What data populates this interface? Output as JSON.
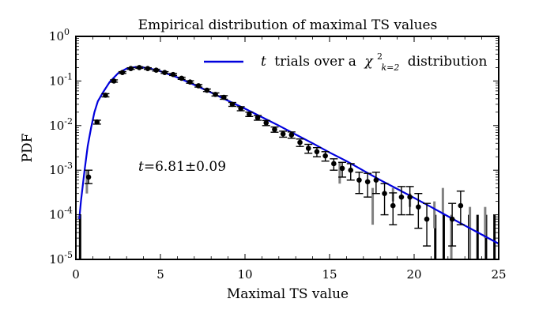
{
  "chart_data": {
    "type": "scatter",
    "title": "Empirical distribution of maximal TS values",
    "xlabel": "Maximal TS value",
    "ylabel": "PDF",
    "xlim": [
      0,
      25
    ],
    "ylim_log10": [
      -5,
      0
    ],
    "x_ticks": [
      0,
      5,
      10,
      15,
      20,
      25
    ],
    "x_tick_labels": [
      "0",
      "5",
      "10",
      "15",
      "20",
      "25"
    ],
    "y_ticks_log10": [
      0,
      -1,
      -2,
      -3,
      -4,
      -5
    ],
    "y_tick_labels": [
      "10^0",
      "10^-1",
      "10^-2",
      "10^-3",
      "10^-4",
      "10^-5"
    ],
    "legend": {
      "placement": "top-right",
      "label_prefix": "t",
      "label_text": "trials over a",
      "chi": "χ",
      "chi_sup": "2",
      "chi_sub": "k=2",
      "label_suffix": "distribution"
    },
    "annotation": {
      "symbol": "t",
      "text": "=6.81±0.09"
    },
    "colors": {
      "model": "#0000dd",
      "points": "#000000",
      "gray_bars": "#808080"
    },
    "model_curve": {
      "name": "t trials over a chi2_k=2 distribution",
      "x": [
        0.2,
        0.3,
        0.5,
        0.7,
        0.9,
        1.1,
        1.3,
        1.6,
        2.0,
        2.5,
        3.0,
        3.5,
        4.0,
        4.5,
        5.0,
        6.0,
        7.0,
        8.0,
        9.0,
        10.0,
        11.0,
        12.0,
        13.0,
        14.0,
        15.0,
        16.0,
        17.0,
        18.0,
        19.0,
        20.0,
        21.0,
        22.0,
        23.0,
        24.0,
        25.0
      ],
      "y": [
        8e-05,
        0.0002,
        0.0009,
        0.0035,
        0.009,
        0.02,
        0.035,
        0.055,
        0.095,
        0.15,
        0.19,
        0.205,
        0.2,
        0.185,
        0.165,
        0.12,
        0.082,
        0.055,
        0.036,
        0.024,
        0.0155,
        0.01,
        0.0063,
        0.004,
        0.0025,
        0.0016,
        0.00098,
        0.0006,
        0.00038,
        0.00024,
        0.00015,
        9.25e-05,
        5.75e-05,
        3.6e-05,
        2.25e-05
      ]
    },
    "black_points": {
      "name": "empirical",
      "x": [
        0.75,
        1.25,
        1.75,
        2.25,
        2.75,
        3.25,
        3.75,
        4.25,
        4.75,
        5.25,
        5.75,
        6.25,
        6.75,
        7.25,
        7.75,
        8.25,
        8.75,
        9.25,
        9.75,
        10.25,
        10.75,
        11.25,
        11.75,
        12.25,
        12.75,
        13.25,
        13.75,
        14.25,
        14.75,
        15.25,
        15.75,
        16.25,
        16.75,
        17.25,
        17.75,
        18.25,
        18.75,
        19.25,
        19.75,
        20.25,
        20.75,
        22.25,
        22.75
      ],
      "y": [
        0.0007,
        0.012,
        0.048,
        0.1,
        0.155,
        0.19,
        0.2,
        0.19,
        0.175,
        0.155,
        0.14,
        0.115,
        0.095,
        0.078,
        0.062,
        0.05,
        0.043,
        0.03,
        0.024,
        0.018,
        0.015,
        0.0115,
        0.0082,
        0.0065,
        0.0062,
        0.0042,
        0.0031,
        0.0026,
        0.0021,
        0.0014,
        0.0011,
        0.001,
        0.0006,
        0.00055,
        0.0006,
        0.0003,
        0.00016,
        0.00025,
        0.00025,
        0.00015,
        8e-05,
        8e-05,
        0.00016
      ],
      "err_low": [
        0.0002,
        0.0012,
        0.004,
        0.006,
        0.007,
        0.008,
        0.008,
        0.008,
        0.008,
        0.007,
        0.007,
        0.006,
        0.006,
        0.005,
        0.004,
        0.004,
        0.004,
        0.003,
        0.0025,
        0.002,
        0.0018,
        0.0015,
        0.0011,
        0.001,
        0.001,
        0.0008,
        0.0007,
        0.0006,
        0.0005,
        0.0004,
        0.0004,
        0.0004,
        0.0003,
        0.0003,
        0.0003,
        0.0002,
        0.0001,
        0.00015,
        0.00015,
        0.0001,
        6e-05,
        6e-05,
        0.0001
      ],
      "err_high": [
        0.0003,
        0.0012,
        0.004,
        0.006,
        0.007,
        0.008,
        0.008,
        0.008,
        0.008,
        0.007,
        0.007,
        0.006,
        0.006,
        0.005,
        0.004,
        0.004,
        0.004,
        0.003,
        0.0025,
        0.002,
        0.0018,
        0.0015,
        0.0011,
        0.001,
        0.001,
        0.0008,
        0.0007,
        0.0006,
        0.0005,
        0.0004,
        0.0004,
        0.0004,
        0.0003,
        0.0003,
        0.0003,
        0.0002,
        0.00015,
        0.00018,
        0.00018,
        0.00015,
        0.0001,
        0.0001,
        0.00018
      ]
    },
    "gray_bars": {
      "x": [
        0.65,
        15.6,
        17.55,
        18.75,
        19.75,
        21.2,
        21.7,
        22.2,
        23.3,
        24.2
      ],
      "y_low": [
        0.0003,
        0.0005,
        6e-05,
        0.0002,
        0.00015,
        5e-05,
        0.0001,
        1e-05,
        1e-05,
        3e-05
      ],
      "y_high": [
        0.001,
        0.0015,
        0.0004,
        0.0004,
        0.0003,
        0.0002,
        0.0004,
        0.0001,
        0.00015,
        0.00015
      ]
    },
    "zero_bars": {
      "x": [
        0.25,
        21.25,
        21.75,
        23.25,
        23.75,
        24.25,
        24.75
      ],
      "y_high": [
        0.0001,
        0.0001,
        0.0001,
        0.0001,
        0.0001,
        0.0001,
        0.0001
      ]
    }
  }
}
